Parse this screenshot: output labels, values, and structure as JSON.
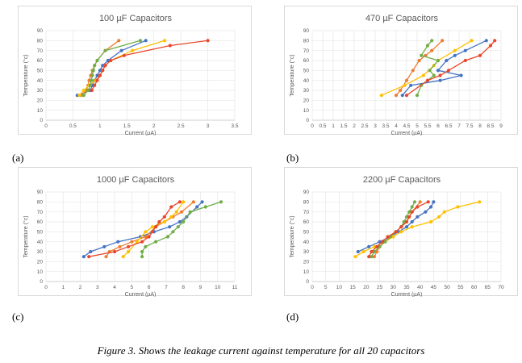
{
  "caption": "Figure 3. Shows the leakage current against temperature for all 20 capacitors",
  "series_colors": [
    "#4472c4",
    "#ed7d31",
    "#ffc000",
    "#70ad47",
    "#e8472b"
  ],
  "chart_data": [
    {
      "panel_label": "(a)",
      "type": "line",
      "title": "100 µF Capacitors",
      "xlabel": "Current (µA)",
      "ylabel": "Temperature (°c)",
      "xlim": [
        0,
        3.5
      ],
      "ylim": [
        0,
        90
      ],
      "xticks": [
        0,
        0.5,
        1,
        1.5,
        2,
        2.5,
        3,
        3.5
      ],
      "yticks": [
        0,
        10,
        20,
        30,
        40,
        50,
        60,
        70,
        80,
        90
      ],
      "grid": true,
      "series": [
        {
          "color": "#4472c4",
          "x": [
            0.58,
            0.82,
            0.86,
            0.9,
            0.95,
            1.0,
            1.05,
            1.15,
            1.4,
            1.85
          ],
          "y": [
            25,
            30,
            35,
            40,
            45,
            50,
            55,
            60,
            70,
            80
          ]
        },
        {
          "color": "#ed7d31",
          "x": [
            0.65,
            0.75,
            0.78,
            0.8,
            0.83,
            0.86,
            0.9,
            0.95,
            1.1,
            1.35
          ],
          "y": [
            25,
            30,
            35,
            40,
            45,
            50,
            55,
            60,
            70,
            80
          ]
        },
        {
          "color": "#ffc000",
          "x": [
            0.62,
            0.7,
            0.8,
            0.92,
            1.0,
            1.05,
            1.1,
            1.2,
            1.6,
            2.2
          ],
          "y": [
            25,
            30,
            35,
            40,
            45,
            50,
            55,
            60,
            70,
            80
          ]
        },
        {
          "color": "#70ad47",
          "x": [
            0.7,
            0.78,
            0.82,
            0.84,
            0.86,
            0.88,
            0.9,
            0.95,
            1.1,
            1.75
          ],
          "y": [
            25,
            30,
            35,
            40,
            45,
            50,
            55,
            60,
            70,
            80
          ]
        },
        {
          "color": "#e8472b",
          "x": [
            0.85,
            0.9,
            0.95,
            1.0,
            1.05,
            1.1,
            1.2,
            1.45,
            2.3,
            3.0
          ],
          "y": [
            30,
            35,
            40,
            45,
            50,
            55,
            60,
            65,
            75,
            80
          ]
        }
      ]
    },
    {
      "panel_label": "(b)",
      "type": "line",
      "title": "470 µF Capacitors",
      "xlabel": "Current (µA)",
      "ylabel": "Temperature (°c)",
      "xlim": [
        0,
        9
      ],
      "ylim": [
        0,
        90
      ],
      "xticks": [
        0,
        0.5,
        1,
        1.5,
        2,
        2.5,
        3,
        3.5,
        4,
        4.5,
        5,
        5.5,
        6,
        6.5,
        7,
        7.5,
        8,
        8.5,
        9
      ],
      "yticks": [
        0,
        10,
        20,
        30,
        40,
        50,
        60,
        70,
        80,
        90
      ],
      "grid": true,
      "series": [
        {
          "color": "#4472c4",
          "x": [
            4.3,
            4.7,
            6.1,
            7.1,
            6.0,
            6.4,
            6.8,
            7.3,
            8.3
          ],
          "y": [
            25,
            35,
            40,
            45,
            50,
            60,
            65,
            70,
            80
          ]
        },
        {
          "color": "#ed7d31",
          "x": [
            4.0,
            4.2,
            4.5,
            4.8,
            5.1,
            5.4,
            5.7,
            6.2
          ],
          "y": [
            25,
            30,
            40,
            50,
            60,
            65,
            70,
            80
          ]
        },
        {
          "color": "#ffc000",
          "x": [
            3.3,
            4.4,
            5.3,
            5.8,
            6.0,
            6.8,
            7.6
          ],
          "y": [
            25,
            35,
            45,
            55,
            60,
            70,
            80
          ]
        },
        {
          "color": "#70ad47",
          "x": [
            5.0,
            5.2,
            5.8,
            5.6,
            6.0,
            5.2,
            5.5,
            5.7
          ],
          "y": [
            25,
            35,
            45,
            50,
            60,
            65,
            75,
            80
          ]
        },
        {
          "color": "#e8472b",
          "x": [
            4.5,
            5.5,
            6.1,
            6.5,
            7.3,
            8.0,
            8.5,
            8.7
          ],
          "y": [
            25,
            40,
            45,
            50,
            60,
            65,
            75,
            80
          ]
        }
      ]
    },
    {
      "panel_label": "(c)",
      "type": "line",
      "title": "1000 µF Capacitors",
      "xlabel": "Current (µA)",
      "ylabel": "Temperature (°c)",
      "xlim": [
        0,
        11
      ],
      "ylim": [
        0,
        90
      ],
      "xticks": [
        0,
        1,
        2,
        3,
        4,
        5,
        6,
        7,
        8,
        9,
        10,
        11
      ],
      "yticks": [
        0,
        10,
        20,
        30,
        40,
        50,
        60,
        70,
        80,
        90
      ],
      "grid": true,
      "series": [
        {
          "color": "#4472c4",
          "x": [
            2.2,
            2.6,
            3.4,
            4.2,
            5.5,
            6.3,
            7.2,
            7.8,
            8.2,
            8.8,
            9.1
          ],
          "y": [
            25,
            30,
            35,
            40,
            45,
            50,
            55,
            60,
            65,
            75,
            80
          ]
        },
        {
          "color": "#ed7d31",
          "x": [
            3.5,
            3.7,
            4.3,
            5.0,
            5.8,
            6.4,
            6.9,
            7.4,
            7.9,
            8.6
          ],
          "y": [
            25,
            30,
            35,
            40,
            45,
            55,
            60,
            65,
            70,
            80
          ]
        },
        {
          "color": "#ffc000",
          "x": [
            4.5,
            4.8,
            5.3,
            5.8,
            6.2,
            6.9,
            7.3,
            7.6,
            8.0
          ],
          "y": [
            25,
            30,
            40,
            50,
            55,
            60,
            65,
            70,
            80
          ]
        },
        {
          "color": "#70ad47",
          "x": [
            5.6,
            5.6,
            5.8,
            6.4,
            7.1,
            7.4,
            7.7,
            8.0,
            8.4,
            9.3,
            10.2
          ],
          "y": [
            25,
            30,
            35,
            40,
            45,
            50,
            55,
            60,
            70,
            75,
            80
          ]
        },
        {
          "color": "#e8472b",
          "x": [
            2.5,
            4.0,
            4.8,
            5.6,
            6.0,
            6.2,
            6.4,
            6.6,
            6.9,
            7.3,
            7.8
          ],
          "y": [
            25,
            30,
            35,
            40,
            45,
            50,
            55,
            60,
            65,
            75,
            80
          ]
        }
      ]
    },
    {
      "panel_label": "(d)",
      "type": "line",
      "title": "2200 µF Capacitors",
      "xlabel": "Current (µA)",
      "ylabel": "Temperature (°c)",
      "xlim": [
        0,
        70
      ],
      "ylim": [
        0,
        90
      ],
      "xticks": [
        0,
        5,
        10,
        15,
        20,
        25,
        30,
        35,
        40,
        45,
        50,
        55,
        60,
        65,
        70
      ],
      "yticks": [
        0,
        10,
        20,
        30,
        40,
        50,
        60,
        70,
        80,
        90
      ],
      "grid": true,
      "series": [
        {
          "color": "#4472c4",
          "x": [
            17,
            21,
            25,
            29,
            32,
            35,
            37,
            39,
            42,
            44,
            45
          ],
          "y": [
            30,
            35,
            40,
            45,
            50,
            55,
            60,
            65,
            70,
            75,
            80
          ]
        },
        {
          "color": "#ed7d31",
          "x": [
            23,
            24,
            25,
            27,
            29,
            31,
            33,
            35,
            37,
            40
          ],
          "y": [
            25,
            30,
            35,
            40,
            45,
            50,
            55,
            60,
            70,
            80
          ]
        },
        {
          "color": "#ffc000",
          "x": [
            16,
            19,
            23,
            27,
            30,
            33,
            37,
            44,
            47,
            49,
            54,
            62
          ],
          "y": [
            25,
            30,
            35,
            40,
            45,
            50,
            55,
            60,
            65,
            70,
            75,
            80
          ]
        },
        {
          "color": "#70ad47",
          "x": [
            22,
            23,
            25,
            27,
            29,
            31,
            33,
            34,
            35,
            36,
            37,
            38
          ],
          "y": [
            25,
            30,
            35,
            40,
            45,
            50,
            55,
            60,
            65,
            70,
            75,
            80
          ]
        },
        {
          "color": "#e8472b",
          "x": [
            21,
            22,
            24,
            26,
            28,
            31,
            33,
            35,
            36,
            37,
            39,
            43
          ],
          "y": [
            25,
            30,
            35,
            40,
            45,
            50,
            55,
            60,
            65,
            70,
            75,
            80
          ]
        }
      ]
    }
  ]
}
